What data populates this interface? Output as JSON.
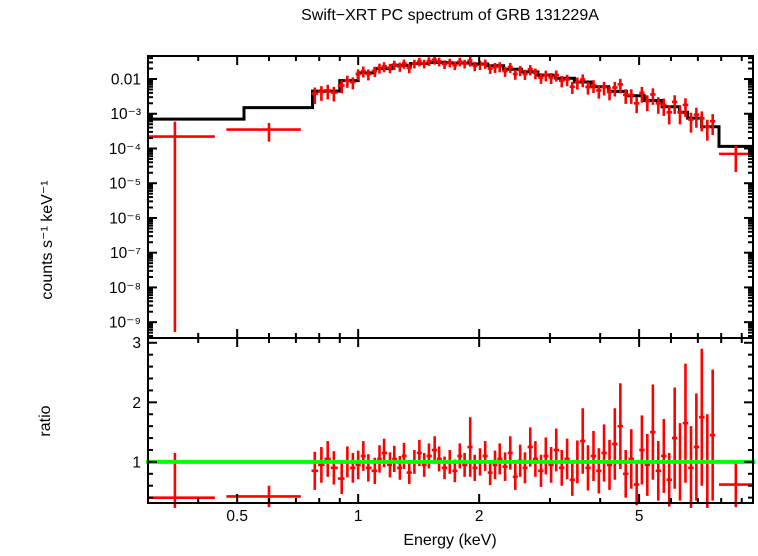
{
  "title": "Swift−XRT PC spectrum of GRB 131229A",
  "colors": {
    "data": "#ff0000",
    "model": "#000000",
    "ratio_line": "#00ff00",
    "frame": "#000000",
    "background": "#ffffff"
  },
  "axes": {
    "x": {
      "label": "Energy (keV)",
      "scale": "log",
      "min": 0.3,
      "max": 9.6,
      "major_ticks": [
        0.5,
        1,
        2,
        5
      ],
      "major_tick_labels": [
        "0.5",
        "1",
        "2",
        "5"
      ],
      "minor_ticks": [
        0.4,
        0.6,
        0.7,
        0.8,
        0.9,
        3,
        4,
        6,
        7,
        8,
        9
      ]
    },
    "y_top": {
      "label": "counts s⁻¹ keV⁻¹",
      "scale": "log",
      "min": 3.5e-10,
      "max": 0.046,
      "major_ticks": [
        0.01,
        0.001,
        0.0001,
        1e-05,
        1e-06,
        1e-07,
        1e-08,
        1e-09
      ],
      "major_tick_labels": [
        "0.01",
        "10⁻³",
        "10⁻⁴",
        "10⁻⁵",
        "10⁻⁶",
        "10⁻⁷",
        "10⁻⁸",
        "10⁻⁹"
      ]
    },
    "y_bottom": {
      "label": "ratio",
      "scale": "linear",
      "min": 0.31,
      "max": 3.08,
      "major_ticks": [
        1,
        2,
        3
      ],
      "major_tick_labels": [
        "1",
        "2",
        "3"
      ],
      "minor_tick_step": 0.2
    }
  },
  "chart_data": {
    "type": "scatter",
    "description": "X-ray spectrum: red crosses = observed counts with errors, black histogram = folded model; lower panel = data/model ratio with green line at 1",
    "model_histogram_bins": [
      [
        0.3,
        0.52,
        0.0007
      ],
      [
        0.52,
        0.77,
        0.0015
      ],
      [
        0.77,
        0.9,
        0.0045
      ],
      [
        0.9,
        1.0,
        0.009
      ],
      [
        1.0,
        1.1,
        0.015
      ],
      [
        1.1,
        1.22,
        0.02
      ],
      [
        1.22,
        1.35,
        0.025
      ],
      [
        1.35,
        1.5,
        0.028
      ],
      [
        1.5,
        1.7,
        0.03
      ],
      [
        1.7,
        1.9,
        0.029
      ],
      [
        1.9,
        2.1,
        0.027
      ],
      [
        2.1,
        2.3,
        0.024
      ],
      [
        2.3,
        2.55,
        0.019
      ],
      [
        2.55,
        2.8,
        0.016
      ],
      [
        2.8,
        3.1,
        0.013
      ],
      [
        3.1,
        3.45,
        0.0105
      ],
      [
        3.45,
        3.8,
        0.0082
      ],
      [
        3.8,
        4.2,
        0.006
      ],
      [
        4.2,
        4.65,
        0.0044
      ],
      [
        4.65,
        5.15,
        0.0033
      ],
      [
        5.15,
        5.7,
        0.0024
      ],
      [
        5.7,
        6.3,
        0.0016
      ],
      [
        6.3,
        6.6,
        0.0011
      ],
      [
        6.6,
        7.15,
        0.00075
      ],
      [
        7.15,
        7.9,
        0.00042
      ],
      [
        7.9,
        9.6,
        0.000115
      ]
    ],
    "wide_points_columns": [
      "e_lo",
      "e",
      "e_hi",
      "counts",
      "frac_err",
      "ratio",
      "ratio_err"
    ],
    "wide_points_low_energy": [
      [
        0.3,
        0.35,
        0.44,
        0.00022,
        1.7,
        0.4,
        0.75
      ],
      [
        0.47,
        0.6,
        0.72,
        0.00035,
        0.55,
        0.42,
        0.18
      ]
    ],
    "wide_point_high_energy": [
      7.9,
      8.7,
      9.6,
      7e-05,
      0.7,
      0.62,
      0.38
    ],
    "points_columns": [
      "e",
      "counts",
      "frac_err",
      "ratio",
      "ratio_err"
    ],
    "points": [
      [
        0.78,
        0.0038,
        0.5,
        0.85,
        0.32
      ],
      [
        0.81,
        0.0043,
        0.45,
        0.95,
        0.3
      ],
      [
        0.84,
        0.0047,
        0.45,
        1.05,
        0.3
      ],
      [
        0.87,
        0.0041,
        0.45,
        0.9,
        0.28
      ],
      [
        0.91,
        0.0065,
        0.4,
        0.72,
        0.26
      ],
      [
        0.94,
        0.009,
        0.38,
        1.0,
        0.26
      ],
      [
        0.97,
        0.0081,
        0.38,
        0.9,
        0.25
      ],
      [
        1.0,
        0.014,
        0.35,
        0.95,
        0.24
      ],
      [
        1.03,
        0.017,
        0.35,
        1.1,
        0.25
      ],
      [
        1.06,
        0.014,
        0.35,
        0.9,
        0.23
      ],
      [
        1.1,
        0.017,
        0.33,
        0.85,
        0.22
      ],
      [
        1.13,
        0.021,
        0.32,
        1.05,
        0.23
      ],
      [
        1.16,
        0.023,
        0.32,
        1.15,
        0.24
      ],
      [
        1.2,
        0.021,
        0.3,
        0.95,
        0.21
      ],
      [
        1.23,
        0.026,
        0.3,
        1.05,
        0.22
      ],
      [
        1.27,
        0.023,
        0.3,
        0.9,
        0.2
      ],
      [
        1.3,
        0.028,
        0.3,
        1.1,
        0.22
      ],
      [
        1.34,
        0.021,
        0.3,
        0.82,
        0.19
      ],
      [
        1.38,
        0.028,
        0.28,
        1.0,
        0.2
      ],
      [
        1.42,
        0.032,
        0.28,
        1.15,
        0.22
      ],
      [
        1.46,
        0.028,
        0.28,
        0.95,
        0.2
      ],
      [
        1.5,
        0.033,
        0.28,
        1.1,
        0.21
      ],
      [
        1.55,
        0.036,
        0.28,
        1.2,
        0.23
      ],
      [
        1.59,
        0.032,
        0.28,
        1.05,
        0.21
      ],
      [
        1.64,
        0.027,
        0.28,
        0.9,
        0.19
      ],
      [
        1.69,
        0.03,
        0.28,
        1.0,
        0.2
      ],
      [
        1.74,
        0.025,
        0.28,
        0.85,
        0.19
      ],
      [
        1.79,
        0.032,
        0.28,
        1.1,
        0.21
      ],
      [
        1.84,
        0.028,
        0.28,
        0.95,
        0.2
      ],
      [
        1.9,
        0.034,
        0.33,
        1.25,
        0.5
      ],
      [
        1.95,
        0.024,
        0.3,
        0.9,
        0.22
      ],
      [
        2.01,
        0.026,
        0.3,
        1.0,
        0.23
      ],
      [
        2.07,
        0.028,
        0.3,
        1.1,
        0.25
      ],
      [
        2.13,
        0.02,
        0.3,
        0.82,
        0.21
      ],
      [
        2.19,
        0.022,
        0.32,
        0.95,
        0.24
      ],
      [
        2.25,
        0.023,
        0.32,
        1.05,
        0.26
      ],
      [
        2.32,
        0.017,
        0.32,
        0.92,
        0.24
      ],
      [
        2.39,
        0.022,
        0.32,
        1.15,
        0.28
      ],
      [
        2.46,
        0.014,
        0.32,
        0.75,
        0.22
      ],
      [
        2.53,
        0.018,
        0.33,
        1.02,
        0.27
      ],
      [
        2.6,
        0.014,
        0.33,
        0.9,
        0.26
      ],
      [
        2.68,
        0.019,
        0.33,
        1.25,
        0.33
      ],
      [
        2.76,
        0.015,
        0.34,
        1.05,
        0.3
      ],
      [
        2.85,
        0.011,
        0.34,
        0.85,
        0.27
      ],
      [
        2.93,
        0.013,
        0.34,
        1.1,
        0.31
      ],
      [
        3.02,
        0.011,
        0.35,
        0.95,
        0.3
      ],
      [
        3.11,
        0.013,
        0.35,
        1.2,
        0.36
      ],
      [
        3.21,
        0.009,
        0.36,
        0.9,
        0.3
      ],
      [
        3.31,
        0.0097,
        0.36,
        1.05,
        0.34
      ],
      [
        3.41,
        0.006,
        0.38,
        0.7,
        0.27
      ],
      [
        3.51,
        0.008,
        0.38,
        1.0,
        0.36
      ],
      [
        3.62,
        0.0097,
        0.4,
        1.35,
        0.55
      ],
      [
        3.73,
        0.0059,
        0.4,
        0.9,
        0.38
      ],
      [
        3.85,
        0.0066,
        0.4,
        1.1,
        0.42
      ],
      [
        3.97,
        0.0047,
        0.42,
        0.85,
        0.38
      ],
      [
        4.09,
        0.0058,
        0.42,
        1.15,
        0.48
      ],
      [
        4.22,
        0.0042,
        0.42,
        0.95,
        0.42
      ],
      [
        4.35,
        0.0057,
        0.45,
        1.3,
        0.6
      ],
      [
        4.49,
        0.007,
        0.45,
        1.6,
        0.72
      ],
      [
        4.63,
        0.0035,
        0.45,
        0.8,
        0.4
      ],
      [
        4.78,
        0.0035,
        0.45,
        1.05,
        0.5
      ],
      [
        4.93,
        0.002,
        0.48,
        0.62,
        0.35
      ],
      [
        5.08,
        0.004,
        0.48,
        1.2,
        0.58
      ],
      [
        5.24,
        0.0023,
        0.48,
        0.95,
        0.52
      ],
      [
        5.41,
        0.0036,
        0.5,
        1.5,
        0.8
      ],
      [
        5.58,
        0.002,
        0.5,
        0.85,
        0.5
      ],
      [
        5.76,
        0.0018,
        0.52,
        1.1,
        0.62
      ],
      [
        5.94,
        0.0011,
        0.55,
        0.7,
        0.45
      ],
      [
        6.13,
        0.0022,
        0.55,
        1.4,
        0.85
      ],
      [
        6.32,
        0.0011,
        0.55,
        1.0,
        0.65
      ],
      [
        6.52,
        0.0018,
        0.55,
        1.65,
        1.0
      ],
      [
        6.73,
        0.00068,
        0.58,
        0.9,
        0.7
      ],
      [
        6.94,
        0.00094,
        0.58,
        1.25,
        0.9
      ],
      [
        7.16,
        0.00074,
        0.58,
        1.75,
        1.15
      ],
      [
        7.39,
        0.00042,
        0.6,
        1.0,
        0.8
      ],
      [
        7.62,
        0.00061,
        0.6,
        1.45,
        1.1
      ]
    ],
    "ratio_reference_line": 1.0
  }
}
